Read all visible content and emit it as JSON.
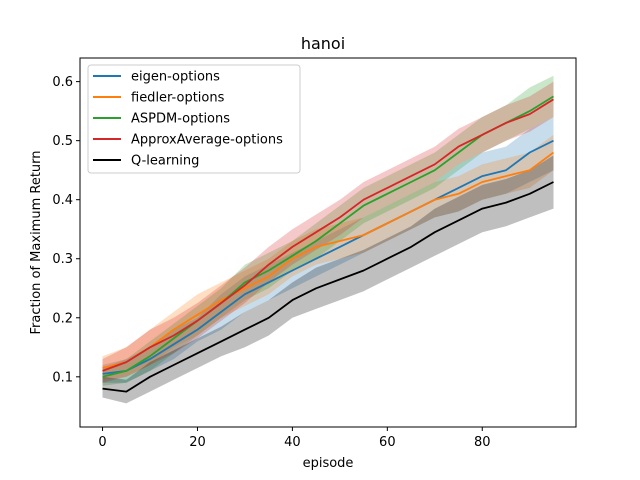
{
  "chart_data": {
    "type": "line",
    "title": "hanoi",
    "xlabel": "episode",
    "ylabel": "Fraction of Maximum Return",
    "xlim": [
      -4.75,
      99.75
    ],
    "ylim": [
      0.015,
      0.64
    ],
    "xticks": [
      0,
      20,
      40,
      60,
      80
    ],
    "yticks": [
      0.1,
      0.2,
      0.3,
      0.4,
      0.5,
      0.6
    ],
    "xtick_labels": [
      "0",
      "20",
      "40",
      "60",
      "80"
    ],
    "ytick_labels": [
      "0.1",
      "0.2",
      "0.3",
      "0.4",
      "0.5",
      "0.6"
    ],
    "grid": false,
    "legend_position": "upper left",
    "band_opacity": 0.25,
    "series": [
      {
        "name": "eigen-options",
        "color": "#1f77b4",
        "x": [
          0,
          5,
          10,
          15,
          20,
          25,
          30,
          35,
          40,
          45,
          50,
          55,
          60,
          65,
          70,
          75,
          80,
          85,
          90,
          95
        ],
        "mean": [
          0.105,
          0.11,
          0.13,
          0.155,
          0.18,
          0.21,
          0.24,
          0.26,
          0.28,
          0.3,
          0.32,
          0.34,
          0.36,
          0.38,
          0.4,
          0.42,
          0.44,
          0.45,
          0.48,
          0.5
        ],
        "lower": [
          0.09,
          0.09,
          0.11,
          0.13,
          0.16,
          0.18,
          0.21,
          0.23,
          0.25,
          0.27,
          0.29,
          0.31,
          0.33,
          0.35,
          0.37,
          0.38,
          0.4,
          0.41,
          0.43,
          0.45
        ],
        "upper": [
          0.12,
          0.13,
          0.15,
          0.18,
          0.2,
          0.24,
          0.27,
          0.29,
          0.31,
          0.33,
          0.35,
          0.37,
          0.39,
          0.41,
          0.43,
          0.46,
          0.48,
          0.49,
          0.52,
          0.54
        ]
      },
      {
        "name": "fiedler-options",
        "color": "#ff7f0e",
        "x": [
          0,
          5,
          10,
          15,
          20,
          25,
          30,
          35,
          40,
          45,
          50,
          55,
          60,
          65,
          70,
          75,
          80,
          85,
          90,
          95
        ],
        "mean": [
          0.115,
          0.125,
          0.15,
          0.18,
          0.205,
          0.23,
          0.25,
          0.27,
          0.3,
          0.32,
          0.33,
          0.34,
          0.36,
          0.38,
          0.4,
          0.41,
          0.43,
          0.44,
          0.45,
          0.48
        ],
        "lower": [
          0.095,
          0.1,
          0.12,
          0.15,
          0.17,
          0.2,
          0.22,
          0.24,
          0.27,
          0.29,
          0.3,
          0.31,
          0.33,
          0.35,
          0.37,
          0.38,
          0.4,
          0.41,
          0.42,
          0.45
        ],
        "upper": [
          0.135,
          0.15,
          0.18,
          0.21,
          0.24,
          0.26,
          0.28,
          0.3,
          0.33,
          0.35,
          0.36,
          0.37,
          0.39,
          0.41,
          0.43,
          0.44,
          0.46,
          0.47,
          0.48,
          0.51
        ]
      },
      {
        "name": "ASPDM-options",
        "color": "#2ca02c",
        "x": [
          0,
          5,
          10,
          15,
          20,
          25,
          30,
          35,
          40,
          45,
          50,
          55,
          60,
          65,
          70,
          75,
          80,
          85,
          90,
          95
        ],
        "mean": [
          0.1,
          0.11,
          0.135,
          0.165,
          0.195,
          0.225,
          0.26,
          0.28,
          0.305,
          0.33,
          0.36,
          0.39,
          0.41,
          0.43,
          0.45,
          0.48,
          0.51,
          0.53,
          0.55,
          0.575
        ],
        "lower": [
          0.085,
          0.09,
          0.11,
          0.14,
          0.17,
          0.2,
          0.23,
          0.25,
          0.28,
          0.3,
          0.33,
          0.36,
          0.38,
          0.4,
          0.42,
          0.45,
          0.48,
          0.5,
          0.52,
          0.54
        ],
        "upper": [
          0.115,
          0.13,
          0.16,
          0.19,
          0.22,
          0.25,
          0.29,
          0.31,
          0.33,
          0.36,
          0.39,
          0.42,
          0.44,
          0.46,
          0.48,
          0.51,
          0.54,
          0.56,
          0.59,
          0.61
        ]
      },
      {
        "name": "ApproxAverage-options",
        "color": "#d62728",
        "x": [
          0,
          5,
          10,
          15,
          20,
          25,
          30,
          35,
          40,
          45,
          50,
          55,
          60,
          65,
          70,
          75,
          80,
          85,
          90,
          95
        ],
        "mean": [
          0.11,
          0.125,
          0.15,
          0.17,
          0.195,
          0.225,
          0.255,
          0.29,
          0.32,
          0.345,
          0.37,
          0.4,
          0.42,
          0.44,
          0.46,
          0.49,
          0.51,
          0.53,
          0.545,
          0.57
        ],
        "lower": [
          0.09,
          0.1,
          0.12,
          0.14,
          0.165,
          0.195,
          0.225,
          0.26,
          0.29,
          0.315,
          0.34,
          0.37,
          0.39,
          0.41,
          0.43,
          0.46,
          0.48,
          0.5,
          0.515,
          0.54
        ],
        "upper": [
          0.13,
          0.15,
          0.18,
          0.2,
          0.225,
          0.255,
          0.285,
          0.32,
          0.35,
          0.375,
          0.4,
          0.43,
          0.45,
          0.47,
          0.49,
          0.52,
          0.54,
          0.56,
          0.575,
          0.6
        ]
      },
      {
        "name": "Q-learning",
        "color": "#000000",
        "x": [
          0,
          5,
          10,
          15,
          20,
          25,
          30,
          35,
          40,
          45,
          50,
          55,
          60,
          65,
          70,
          75,
          80,
          85,
          90,
          95
        ],
        "mean": [
          0.08,
          0.075,
          0.1,
          0.12,
          0.14,
          0.16,
          0.18,
          0.2,
          0.23,
          0.25,
          0.265,
          0.28,
          0.3,
          0.32,
          0.345,
          0.365,
          0.385,
          0.395,
          0.41,
          0.43
        ],
        "lower": [
          0.065,
          0.055,
          0.075,
          0.095,
          0.115,
          0.135,
          0.15,
          0.17,
          0.2,
          0.215,
          0.23,
          0.245,
          0.265,
          0.285,
          0.305,
          0.325,
          0.345,
          0.355,
          0.37,
          0.385
        ],
        "upper": [
          0.1,
          0.095,
          0.125,
          0.145,
          0.165,
          0.185,
          0.21,
          0.23,
          0.26,
          0.285,
          0.3,
          0.315,
          0.335,
          0.355,
          0.385,
          0.405,
          0.425,
          0.435,
          0.45,
          0.475
        ]
      }
    ]
  }
}
